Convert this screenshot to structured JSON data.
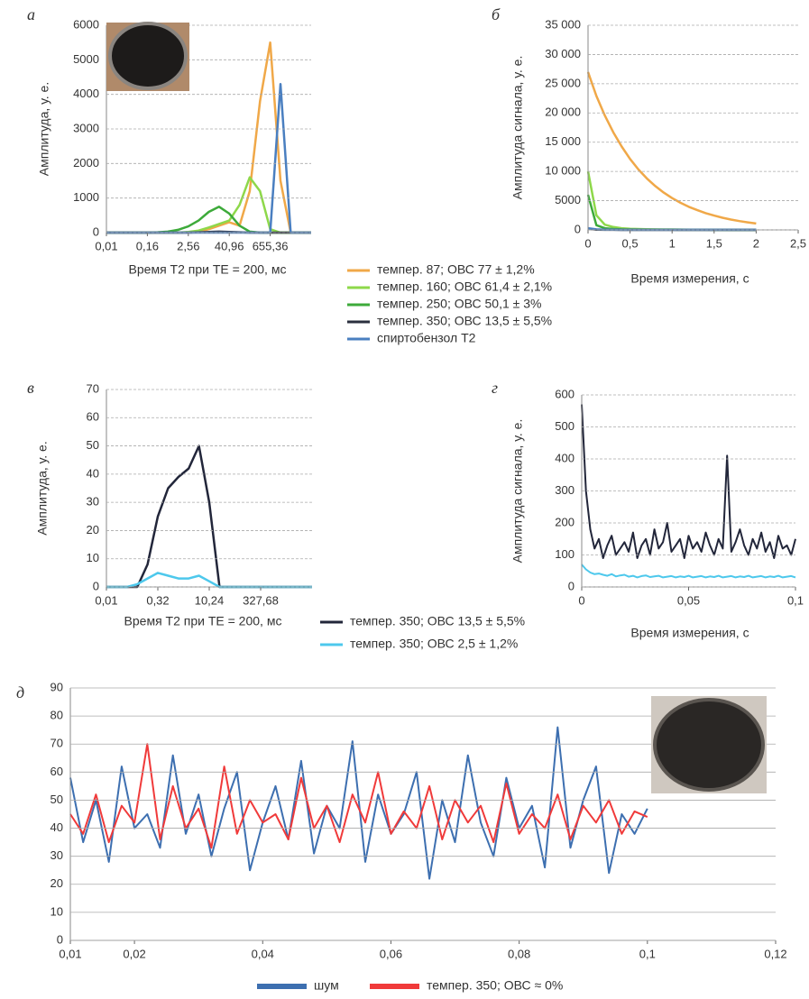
{
  "chart_data": [
    {
      "type": "line",
      "label": "а",
      "ylabel": "Амплитуда, у. е.",
      "xlabel": "Время Т2 при ТЕ = 200, мс",
      "xscale": "log",
      "grid": true,
      "x": [
        0.01,
        0.02,
        0.04,
        0.08,
        0.16,
        0.32,
        0.64,
        1.28,
        2.56,
        5.12,
        10.24,
        20.48,
        40.96,
        81.92,
        163.84,
        327.68,
        655.36,
        1310.72,
        2621.44,
        5242.88,
        10485.76
      ],
      "xlim": [
        0.01,
        10485.76
      ],
      "xticks": [
        {
          "value": 0.01,
          "label": "0,01"
        },
        {
          "value": 0.16,
          "label": "0,16"
        },
        {
          "value": 2.56,
          "label": "2,56"
        },
        {
          "value": 40.96,
          "label": "40,96"
        },
        {
          "value": 655.36,
          "label": "655,36"
        }
      ],
      "ylim": [
        0,
        6000
      ],
      "yticks": [
        0,
        1000,
        2000,
        3000,
        4000,
        5000,
        6000
      ],
      "series": [
        {
          "name": "темпер. 87; ОВС 77 ± 1,2%",
          "color": "#f0a848",
          "values": [
            0,
            0,
            0,
            0,
            0,
            0,
            0,
            0,
            10,
            30,
            100,
            200,
            300,
            200,
            1200,
            3800,
            5500,
            1500,
            0,
            0,
            0
          ]
        },
        {
          "name": "темпер. 160; ОВС 61,4 ± 2,1%",
          "color": "#8ed84a",
          "values": [
            0,
            0,
            0,
            0,
            0,
            0,
            0,
            0,
            20,
            60,
            150,
            250,
            350,
            800,
            1600,
            1200,
            100,
            0,
            0,
            0,
            0
          ]
        },
        {
          "name": "темпер. 250; ОВС 50,1 ± 3%",
          "color": "#3daa3a",
          "values": [
            0,
            0,
            0,
            0,
            0,
            10,
            30,
            80,
            180,
            350,
            600,
            750,
            550,
            200,
            30,
            0,
            0,
            0,
            0,
            0,
            0
          ]
        },
        {
          "name": "темпер. 350; ОВС 13,5 ± 5,5%",
          "color": "#2a2f3e",
          "values": [
            0,
            0,
            0,
            0,
            0,
            0,
            0,
            0,
            0,
            10,
            20,
            30,
            20,
            10,
            0,
            0,
            0,
            0,
            0,
            0,
            0
          ]
        },
        {
          "name": "спиртобензол Т2",
          "color": "#4a7fc0",
          "values": [
            0,
            0,
            0,
            0,
            0,
            0,
            0,
            0,
            0,
            0,
            0,
            0,
            0,
            0,
            0,
            0,
            0,
            4300,
            0,
            0,
            0
          ]
        }
      ]
    },
    {
      "type": "line",
      "label": "б",
      "ylabel": "Амплитуда сигнала, у. е.",
      "xlabel": "Время измерения, с",
      "grid": true,
      "x": [
        0,
        0.1,
        0.2,
        0.3,
        0.4,
        0.5,
        0.6,
        0.7,
        0.8,
        0.9,
        1,
        1.1,
        1.2,
        1.3,
        1.4,
        1.5,
        1.6,
        1.7,
        1.8,
        1.9,
        2
      ],
      "xlim": [
        0,
        2.5
      ],
      "xticks": [
        0,
        {
          "value": 0.5,
          "label": "0,5"
        },
        1,
        {
          "value": 1.5,
          "label": "1,5"
        },
        2,
        {
          "value": 2.5,
          "label": "2,5"
        }
      ],
      "ylim": [
        0,
        35000
      ],
      "yticks": [
        0,
        5000,
        {
          "value": 10000,
          "label": "10 000"
        },
        {
          "value": 15000,
          "label": "15 000"
        },
        {
          "value": 20000,
          "label": "20 000"
        },
        {
          "value": 25000,
          "label": "25 000"
        },
        {
          "value": 30000,
          "label": "30 000"
        },
        {
          "value": 35000,
          "label": "35 000"
        }
      ],
      "series": [
        {
          "color": "#f0a848",
          "values": [
            27000,
            22900,
            19570,
            16700,
            14260,
            12130,
            10330,
            8800,
            7500,
            6380,
            5450,
            4640,
            3950,
            3370,
            2870,
            2450,
            2080,
            1770,
            1510,
            1290,
            1100
          ]
        },
        {
          "color": "#8ed84a",
          "values": [
            10000,
            2500,
            900,
            500,
            300,
            200,
            150,
            120,
            100,
            80,
            70,
            60,
            50,
            40,
            35,
            30,
            25,
            20,
            15,
            10,
            10
          ]
        },
        {
          "color": "#3daa3a",
          "values": [
            6000,
            800,
            300,
            150,
            100,
            80,
            60,
            50,
            40,
            30,
            25,
            20,
            15,
            10,
            10,
            5,
            5,
            5,
            5,
            5,
            5
          ]
        },
        {
          "color": "#2a2f3e",
          "values": [
            200,
            50,
            20,
            10,
            5,
            5,
            5,
            5,
            5,
            5,
            5,
            5,
            5,
            5,
            5,
            5,
            5,
            5,
            5,
            5,
            5
          ]
        },
        {
          "color": "#4a7fc0",
          "values": [
            300,
            100,
            50,
            30,
            20,
            10,
            10,
            10,
            10,
            10,
            10,
            10,
            10,
            10,
            10,
            10,
            10,
            10,
            10,
            10,
            10
          ]
        }
      ]
    },
    {
      "type": "line",
      "label": "в",
      "ylabel": "Амплитуда, у. е.",
      "xlabel": "Время Т2 при ТЕ = 200, мс",
      "xscale": "log",
      "grid": true,
      "x": [
        0.01,
        0.02,
        0.04,
        0.08,
        0.16,
        0.32,
        0.64,
        1.28,
        2.56,
        5.12,
        10.24,
        20.48,
        40.96,
        81.92,
        163.84,
        327.68,
        655.36,
        1310.72,
        2621.44,
        5242.88,
        10485.76
      ],
      "xlim": [
        0.01,
        10485.76
      ],
      "xticks": [
        {
          "value": 0.01,
          "label": "0,01"
        },
        {
          "value": 0.32,
          "label": "0,32"
        },
        {
          "value": 10.24,
          "label": "10,24"
        },
        {
          "value": 327.68,
          "label": "327,68"
        }
      ],
      "ylim": [
        0,
        70
      ],
      "yticks": [
        0,
        10,
        20,
        30,
        40,
        50,
        60,
        70
      ],
      "series": [
        {
          "name": "темпер. 350; ОВС 13,5 ± 5,5%",
          "color": "#22263a",
          "values": [
            0,
            0,
            0,
            0,
            8,
            25,
            35,
            39,
            42,
            50,
            30,
            0,
            0,
            0,
            0,
            0,
            0,
            0,
            0,
            0,
            0
          ]
        },
        {
          "name": "темпер. 350; ОВС 2,5 ± 1,2%",
          "color": "#4dc8ec",
          "values": [
            0,
            0,
            0,
            1,
            3,
            5,
            4,
            3,
            3,
            4,
            2,
            0,
            0,
            0,
            0,
            0,
            0,
            0,
            0,
            0,
            0
          ]
        }
      ]
    },
    {
      "type": "line",
      "label": "г",
      "ylabel": "Амплитуда сигнала, у. е.",
      "xlabel": "Время измерения, с",
      "grid": true,
      "x": [
        0,
        0.002,
        0.004,
        0.006,
        0.008,
        0.01,
        0.012,
        0.014,
        0.016,
        0.018,
        0.02,
        0.022,
        0.024,
        0.026,
        0.028,
        0.03,
        0.032,
        0.034,
        0.036,
        0.038,
        0.04,
        0.042,
        0.044,
        0.046,
        0.048,
        0.05,
        0.052,
        0.054,
        0.056,
        0.058,
        0.06,
        0.062,
        0.064,
        0.066,
        0.068,
        0.07,
        0.072,
        0.074,
        0.076,
        0.078,
        0.08,
        0.082,
        0.084,
        0.086,
        0.088,
        0.09,
        0.092,
        0.094,
        0.096,
        0.098,
        0.1
      ],
      "xlim": [
        0,
        0.1
      ],
      "xticks": [
        0,
        {
          "value": 0.05,
          "label": "0,05"
        },
        {
          "value": 0.1,
          "label": "0,1"
        }
      ],
      "ylim": [
        0,
        600
      ],
      "yticks": [
        0,
        100,
        200,
        300,
        400,
        500,
        600
      ],
      "series": [
        {
          "color": "#22263a",
          "values": [
            570,
            300,
            180,
            120,
            150,
            90,
            130,
            160,
            100,
            120,
            140,
            110,
            170,
            90,
            130,
            150,
            100,
            180,
            120,
            140,
            200,
            110,
            130,
            150,
            90,
            160,
            120,
            140,
            110,
            170,
            130,
            100,
            150,
            120,
            410,
            110,
            140,
            180,
            130,
            100,
            150,
            120,
            170,
            110,
            140,
            90,
            160,
            120,
            130,
            100,
            150
          ]
        },
        {
          "color": "#4dc8ec",
          "values": [
            70,
            55,
            45,
            40,
            42,
            38,
            35,
            40,
            33,
            36,
            38,
            32,
            35,
            30,
            34,
            36,
            31,
            33,
            35,
            30,
            32,
            34,
            30,
            33,
            31,
            35,
            30,
            32,
            34,
            30,
            33,
            31,
            35,
            30,
            32,
            34,
            30,
            33,
            31,
            35,
            30,
            32,
            34,
            30,
            33,
            31,
            35,
            30,
            32,
            34,
            30
          ]
        }
      ]
    },
    {
      "type": "line",
      "label": "д",
      "grid": true,
      "x": [
        0.01,
        0.012,
        0.014,
        0.016,
        0.018,
        0.02,
        0.022,
        0.024,
        0.026,
        0.028,
        0.03,
        0.032,
        0.034,
        0.036,
        0.038,
        0.04,
        0.042,
        0.044,
        0.046,
        0.048,
        0.05,
        0.052,
        0.054,
        0.056,
        0.058,
        0.06,
        0.062,
        0.064,
        0.066,
        0.068,
        0.07,
        0.072,
        0.074,
        0.076,
        0.078,
        0.08,
        0.082,
        0.084,
        0.086,
        0.088,
        0.09,
        0.092,
        0.094,
        0.096,
        0.098,
        0.1
      ],
      "xlim": [
        0.01,
        0.12
      ],
      "xticks": [
        {
          "value": 0.01,
          "label": "0,01"
        },
        {
          "value": 0.02,
          "label": "0,02"
        },
        {
          "value": 0.04,
          "label": "0,04"
        },
        {
          "value": 0.06,
          "label": "0,06"
        },
        {
          "value": 0.08,
          "label": "0,08"
        },
        {
          "value": 0.1,
          "label": "0,1"
        },
        {
          "value": 0.12,
          "label": "0,12"
        }
      ],
      "ylim": [
        0,
        90
      ],
      "yticks": [
        0,
        10,
        20,
        30,
        40,
        50,
        60,
        70,
        80,
        90
      ],
      "series": [
        {
          "name": "шум",
          "color": "#3d6fb0",
          "values": [
            58,
            35,
            50,
            28,
            62,
            40,
            45,
            33,
            66,
            38,
            52,
            30,
            47,
            60,
            25,
            42,
            55,
            36,
            64,
            31,
            48,
            40,
            71,
            28,
            52,
            38,
            45,
            60,
            22,
            50,
            35,
            66,
            42,
            30,
            58,
            40,
            48,
            26,
            76,
            33,
            50,
            62,
            24,
            45,
            38,
            47
          ]
        },
        {
          "name": "темпер. 350; ОВС ≈ 0%",
          "color": "#f03a3a",
          "values": [
            45,
            38,
            52,
            35,
            48,
            42,
            70,
            36,
            55,
            40,
            47,
            33,
            62,
            38,
            50,
            42,
            45,
            36,
            58,
            40,
            48,
            35,
            52,
            42,
            60,
            38,
            46,
            40,
            55,
            36,
            50,
            42,
            48,
            35,
            56,
            38,
            45,
            40,
            52,
            36,
            48,
            42,
            50,
            38,
            46,
            44
          ]
        }
      ]
    }
  ]
}
